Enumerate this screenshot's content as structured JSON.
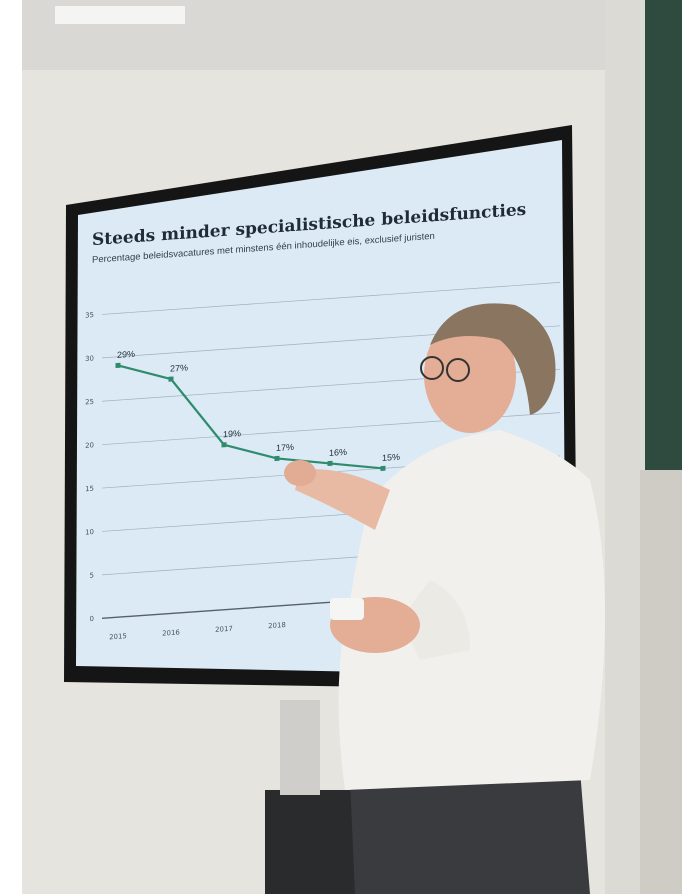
{
  "chart_data": {
    "type": "line",
    "title": "Steeds minder specialistische beleidsfuncties",
    "subtitle": "Percentage beleidsvacatures met minstens één inhoudelijke eis, exclusief juristen",
    "categories": [
      "2015",
      "2016",
      "2017",
      "2018",
      null,
      null
    ],
    "values": [
      29,
      27,
      19,
      17,
      16,
      15
    ],
    "value_labels": [
      "29%",
      "27%",
      "19%",
      "17%",
      "16%",
      "15%"
    ],
    "color": "#2e8b6e",
    "ylim": [
      0,
      35
    ],
    "yticks": [
      0,
      5,
      10,
      15,
      20,
      25,
      30,
      35
    ],
    "grid": true
  }
}
